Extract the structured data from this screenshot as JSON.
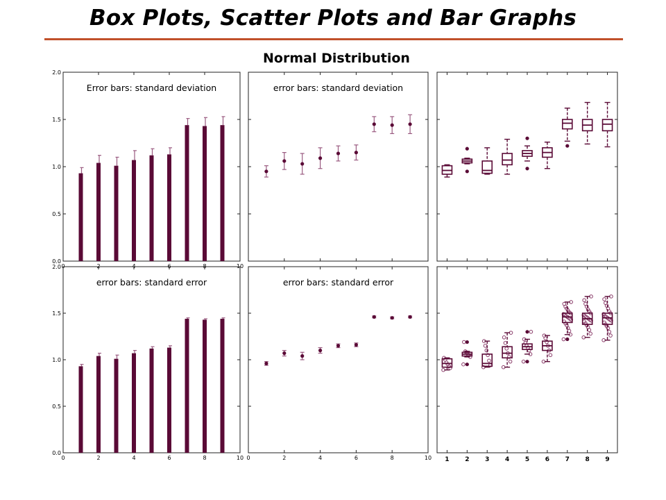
{
  "slide": {
    "title": "Box Plots, Scatter Plots and Bar Graphs",
    "subtitle": "Normal Distribution"
  },
  "colors": {
    "series": "#5a0a36",
    "error_bar": "#9a5a80",
    "title_rule": "#c0502a"
  },
  "chart_data": [
    {
      "panel": "bar-sd",
      "type": "bar",
      "title": "Error bars: standard deviation",
      "x": [
        1,
        2,
        3,
        4,
        5,
        6,
        7,
        8,
        9
      ],
      "values": [
        0.93,
        1.04,
        1.01,
        1.07,
        1.12,
        1.13,
        1.44,
        1.43,
        1.44
      ],
      "errors": [
        0.06,
        0.08,
        0.09,
        0.1,
        0.07,
        0.07,
        0.07,
        0.09,
        0.09
      ],
      "xlim": [
        0,
        10
      ],
      "ylim": [
        0,
        2.0
      ],
      "xticks": [
        "0",
        "2",
        "4",
        "6",
        "8",
        "10"
      ],
      "yticks": [
        "0.0",
        "0.5",
        "1.0",
        "1.5",
        "2.0"
      ]
    },
    {
      "panel": "scatter-sd",
      "type": "scatter",
      "title": "error bars: standard deviation",
      "x": [
        1,
        2,
        3,
        4,
        5,
        6,
        7,
        8,
        9
      ],
      "values": [
        0.95,
        1.06,
        1.03,
        1.09,
        1.14,
        1.15,
        1.45,
        1.44,
        1.45
      ],
      "errors": [
        0.06,
        0.09,
        0.11,
        0.11,
        0.08,
        0.08,
        0.08,
        0.09,
        0.1
      ],
      "xlim": [
        0,
        10
      ],
      "ylim": [
        0,
        2.0
      ]
    },
    {
      "panel": "box",
      "type": "box",
      "x": [
        1,
        2,
        3,
        4,
        5,
        6,
        7,
        8,
        9
      ],
      "boxes": [
        {
          "q1": 0.92,
          "median": 0.96,
          "q3": 1.01,
          "whislo": 0.89,
          "whishi": 1.02,
          "fliers": []
        },
        {
          "q1": 1.04,
          "median": 1.06,
          "q3": 1.08,
          "whislo": 1.03,
          "whishi": 1.09,
          "fliers": [
            1.19,
            0.95
          ]
        },
        {
          "q1": 0.93,
          "median": 0.96,
          "q3": 1.06,
          "whislo": 0.92,
          "whishi": 1.2,
          "fliers": []
        },
        {
          "q1": 1.02,
          "median": 1.07,
          "q3": 1.14,
          "whislo": 0.92,
          "whishi": 1.29,
          "fliers": []
        },
        {
          "q1": 1.11,
          "median": 1.14,
          "q3": 1.17,
          "whislo": 1.06,
          "whishi": 1.22,
          "fliers": [
            1.3,
            0.98
          ]
        },
        {
          "q1": 1.1,
          "median": 1.15,
          "q3": 1.2,
          "whislo": 0.98,
          "whishi": 1.26,
          "fliers": []
        },
        {
          "q1": 1.4,
          "median": 1.46,
          "q3": 1.5,
          "whislo": 1.27,
          "whishi": 1.62,
          "fliers": [
            1.22
          ]
        },
        {
          "q1": 1.38,
          "median": 1.44,
          "q3": 1.5,
          "whislo": 1.24,
          "whishi": 1.68,
          "fliers": []
        },
        {
          "q1": 1.38,
          "median": 1.45,
          "q3": 1.5,
          "whislo": 1.21,
          "whishi": 1.68,
          "fliers": []
        }
      ],
      "xlim": [
        0.5,
        9.5
      ],
      "ylim": [
        0,
        2.0
      ]
    },
    {
      "panel": "bar-se",
      "type": "bar",
      "title": "error bars: standard error",
      "x": [
        1,
        2,
        3,
        4,
        5,
        6,
        7,
        8,
        9
      ],
      "values": [
        0.93,
        1.04,
        1.01,
        1.07,
        1.12,
        1.13,
        1.44,
        1.43,
        1.44
      ],
      "errors": [
        0.02,
        0.03,
        0.04,
        0.03,
        0.02,
        0.02,
        0.01,
        0.01,
        0.01
      ],
      "xlim": [
        0,
        10
      ],
      "ylim": [
        0,
        2.0
      ],
      "xticks": [
        "0",
        "2",
        "4",
        "6",
        "8",
        "10"
      ],
      "yticks": [
        "0.0",
        "0.5",
        "1.0",
        "1.5",
        "2.0"
      ]
    },
    {
      "panel": "scatter-se",
      "type": "scatter",
      "title": "error bars: standard error",
      "x": [
        1,
        2,
        3,
        4,
        5,
        6,
        7,
        8,
        9
      ],
      "values": [
        0.96,
        1.07,
        1.04,
        1.1,
        1.15,
        1.16,
        1.46,
        1.45,
        1.46
      ],
      "errors": [
        0.02,
        0.03,
        0.04,
        0.03,
        0.02,
        0.02,
        0.01,
        0.01,
        0.01
      ],
      "xlim": [
        0,
        10
      ],
      "ylim": [
        0,
        2.0
      ],
      "xticks": [
        "0",
        "2",
        "4",
        "6",
        "8",
        "10"
      ]
    },
    {
      "panel": "box-points",
      "type": "box",
      "x": [
        1,
        2,
        3,
        4,
        5,
        6,
        7,
        8,
        9
      ],
      "boxes": [
        {
          "q1": 0.92,
          "median": 0.96,
          "q3": 1.01,
          "whislo": 0.89,
          "whishi": 1.02,
          "fliers": []
        },
        {
          "q1": 1.04,
          "median": 1.06,
          "q3": 1.08,
          "whislo": 1.03,
          "whishi": 1.09,
          "fliers": [
            1.19,
            0.95
          ]
        },
        {
          "q1": 0.93,
          "median": 0.96,
          "q3": 1.06,
          "whislo": 0.92,
          "whishi": 1.2,
          "fliers": []
        },
        {
          "q1": 1.02,
          "median": 1.07,
          "q3": 1.14,
          "whislo": 0.92,
          "whishi": 1.29,
          "fliers": []
        },
        {
          "q1": 1.11,
          "median": 1.14,
          "q3": 1.17,
          "whislo": 1.06,
          "whishi": 1.22,
          "fliers": [
            1.3,
            0.98
          ]
        },
        {
          "q1": 1.1,
          "median": 1.15,
          "q3": 1.2,
          "whislo": 0.98,
          "whishi": 1.26,
          "fliers": []
        },
        {
          "q1": 1.4,
          "median": 1.46,
          "q3": 1.5,
          "whislo": 1.27,
          "whishi": 1.62,
          "fliers": [
            1.22
          ]
        },
        {
          "q1": 1.38,
          "median": 1.44,
          "q3": 1.5,
          "whislo": 1.24,
          "whishi": 1.68,
          "fliers": []
        },
        {
          "q1": 1.38,
          "median": 1.45,
          "q3": 1.5,
          "whislo": 1.21,
          "whishi": 1.68,
          "fliers": []
        }
      ],
      "points": [
        [
          0.89,
          0.91,
          0.93,
          0.95,
          0.97,
          1.0,
          1.02
        ],
        [
          0.95,
          1.03,
          1.05,
          1.06,
          1.08,
          1.09,
          1.19
        ],
        [
          0.92,
          0.94,
          0.99,
          1.05,
          1.1,
          1.15,
          1.2
        ],
        [
          0.92,
          0.98,
          1.03,
          1.07,
          1.12,
          1.18,
          1.24,
          1.29
        ],
        [
          0.98,
          1.06,
          1.1,
          1.13,
          1.15,
          1.18,
          1.22,
          1.3
        ],
        [
          0.98,
          1.05,
          1.1,
          1.15,
          1.19,
          1.23,
          1.26
        ],
        [
          1.22,
          1.27,
          1.31,
          1.34,
          1.37,
          1.39,
          1.41,
          1.43,
          1.44,
          1.45,
          1.46,
          1.47,
          1.48,
          1.49,
          1.5,
          1.51,
          1.53,
          1.55,
          1.57,
          1.6,
          1.62
        ],
        [
          1.24,
          1.28,
          1.32,
          1.35,
          1.37,
          1.39,
          1.41,
          1.42,
          1.43,
          1.44,
          1.45,
          1.46,
          1.47,
          1.48,
          1.5,
          1.52,
          1.54,
          1.57,
          1.6,
          1.64,
          1.68
        ],
        [
          1.21,
          1.26,
          1.3,
          1.34,
          1.36,
          1.38,
          1.4,
          1.42,
          1.43,
          1.44,
          1.45,
          1.46,
          1.47,
          1.49,
          1.5,
          1.52,
          1.55,
          1.58,
          1.61,
          1.65,
          1.68
        ]
      ],
      "xlim": [
        0.5,
        9.5
      ],
      "ylim": [
        0,
        2.0
      ],
      "xticks": [
        "1",
        "2",
        "3",
        "4",
        "5",
        "6",
        "7",
        "8",
        "9"
      ]
    }
  ]
}
